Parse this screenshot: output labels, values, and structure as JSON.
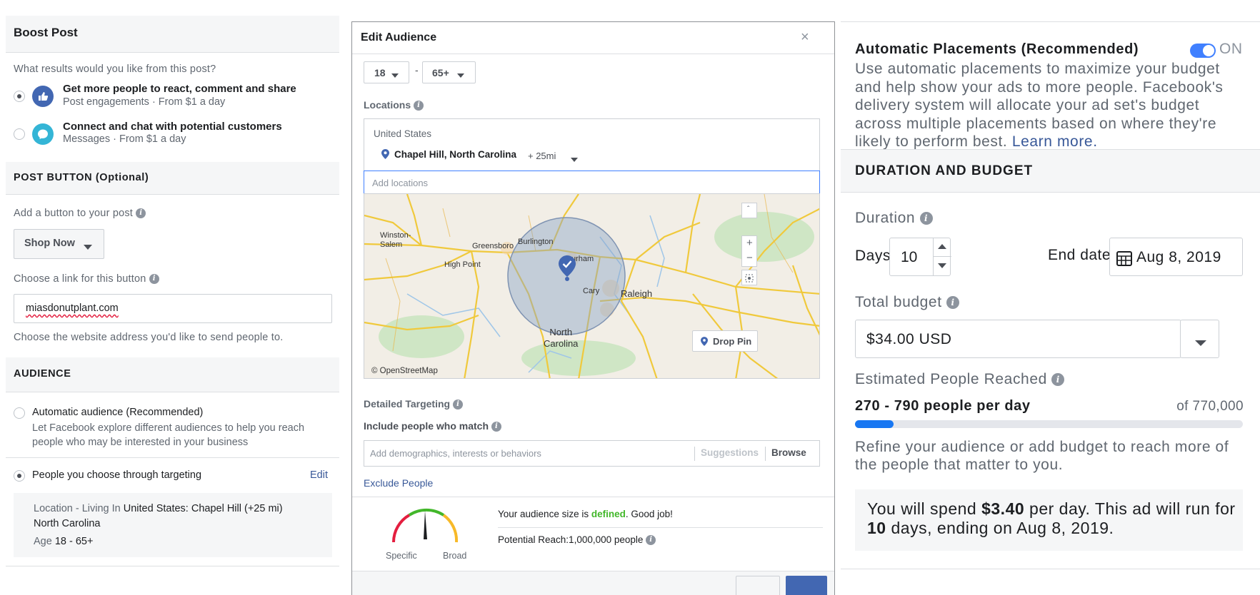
{
  "left": {
    "title": "Boost Post",
    "question": "What results would you like from this post?",
    "options": [
      {
        "title": "Get more people to react, comment and share",
        "subtitle": "Post engagements · From $1 a day"
      },
      {
        "title": "Connect and chat with potential customers",
        "subtitle": "Messages · From $1 a day"
      }
    ],
    "post_button_header": "POST BUTTON (Optional)",
    "add_button_label": "Add a button to your post",
    "button_select_value": "Shop Now",
    "link_label": "Choose a link for this button",
    "link_value": "miasdonutplant.com",
    "link_help": "Choose the website address you'd like to send people to.",
    "audience_header": "AUDIENCE",
    "auto_audience_title": "Automatic audience (Recommended)",
    "auto_audience_desc": "Let Facebook explore different audiences to help you reach people who may be interested in your business",
    "targeting_option": "People you choose through targeting",
    "edit_link": "Edit",
    "location_prefix": "Location - Living In",
    "location_value": "United States: Chapel Hill (+25 mi)",
    "location_value_line2": "North Carolina",
    "age_prefix": "Age",
    "age_value": "18 - 65+"
  },
  "modal": {
    "title": "Edit Audience",
    "close": "×",
    "age_min": "18",
    "age_dash": "-",
    "age_max": "65+",
    "locations_label": "Locations",
    "country": "United States",
    "city": "Chapel Hill, North Carolina",
    "radius": "+ 25mi",
    "add_locations_placeholder": "Add locations",
    "map_labels": {
      "winston_salem": "Winston-\nSalem",
      "greensboro": "Greensboro",
      "burlington": "Burlington",
      "high_point": "High Point",
      "durham": "Durham",
      "cary": "Cary",
      "raleigh": "Raleigh",
      "north_carolina": "North\nCarolina",
      "credit": "© OpenStreetMap"
    },
    "drop_pin": "Drop Pin",
    "zoom_in": "+",
    "zoom_out": "−",
    "detailed_targeting_label": "Detailed Targeting",
    "include_label": "Include people who match",
    "targeting_placeholder": "Add demographics, interests or behaviors",
    "suggestions": "Suggestions",
    "browse": "Browse",
    "exclude": "Exclude People",
    "gauge_specific": "Specific",
    "gauge_broad": "Broad",
    "audience_size_prefix": "Your audience size is",
    "audience_size_status": "defined",
    "audience_size_suffix": ". Good job!",
    "potential_reach": "Potential Reach:1,000,000 people"
  },
  "right": {
    "placements_title": "Automatic Placements (Recommended)",
    "toggle_label": "ON",
    "placements_desc": "Use automatic placements to maximize your budget and help show your ads to more people. Facebook's delivery system will allocate your ad set's budget across multiple placements based on where they're likely to perform best.",
    "learn_more": "Learn more.",
    "duration_budget_header": "DURATION AND BUDGET",
    "duration_label": "Duration",
    "days_label": "Days",
    "days_value": "10",
    "end_date_label": "End date",
    "end_date_value": "Aug 8, 2019",
    "total_budget_label": "Total budget",
    "budget_value": "$34.00 USD",
    "estimated_label": "Estimated People Reached",
    "reach_range": "270 - 790 people per day",
    "reach_total": "of 770,000",
    "reach_progress": 0.1,
    "refine_text": "Refine your audience or add budget to reach more of the people that matter to you.",
    "summary_prefix": "You will spend",
    "summary_amount": "$3.40",
    "summary_middle": "per day. This ad will run for",
    "summary_days": "10",
    "summary_suffix": "days, ending on Aug 8, 2019.",
    "accent": "#1877f2"
  }
}
